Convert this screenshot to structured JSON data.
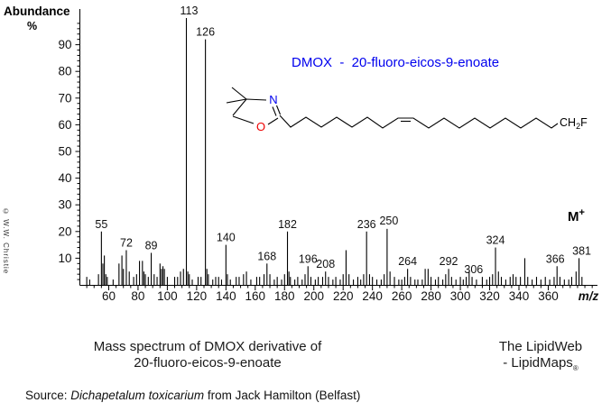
{
  "axes": {
    "y_title": "Abundance",
    "y_unit": "%",
    "x_label": "m/z"
  },
  "title": {
    "text": "DMOX  -  20-fluoro-eicos-9-enoate",
    "color": "#0000ee"
  },
  "watermark": "© W.W. Christie",
  "m_plus": {
    "base": "M",
    "sup": "+"
  },
  "structure": {
    "n_label": "N",
    "o_label": "O",
    "end_group_c": "CH",
    "end_group_sub": "2",
    "end_group_f": "F",
    "n_color": "#0000ee",
    "o_color": "#ee0000"
  },
  "caption": {
    "line1": "Mass spectrum of DMOX derivative of",
    "line2": "20-fluoro-eicos-9-enoate"
  },
  "credit": {
    "line1": "The LipidWeb",
    "line2": "- LipidMaps",
    "reg": "®"
  },
  "source": {
    "prefix": "Source: ",
    "italic": "Dichapetalum toxicarium",
    "suffix": " from Jack Hamilton (Belfast)"
  },
  "chart_data": {
    "type": "bar",
    "subtype": "mass-spectrum-stick-plot",
    "title": "DMOX - 20-fluoro-eicos-9-enoate",
    "xlabel": "m/z",
    "ylabel": "Abundance %",
    "xlim": [
      40,
      393
    ],
    "ylim": [
      0,
      100
    ],
    "x_ticks": [
      60,
      80,
      100,
      120,
      140,
      160,
      180,
      200,
      220,
      240,
      260,
      280,
      300,
      320,
      340,
      360
    ],
    "y_ticks": [
      10,
      20,
      30,
      40,
      50,
      60,
      70,
      80,
      90
    ],
    "grid": false,
    "molecular_ion_mz": 381,
    "labeled_peaks": [
      {
        "mz": 55,
        "intensity": 20
      },
      {
        "mz": 72,
        "intensity": 13
      },
      {
        "mz": 89,
        "intensity": 12
      },
      {
        "mz": 113,
        "intensity": 100
      },
      {
        "mz": 126,
        "intensity": 92
      },
      {
        "mz": 140,
        "intensity": 15
      },
      {
        "mz": 168,
        "intensity": 8
      },
      {
        "mz": 182,
        "intensity": 20
      },
      {
        "mz": 196,
        "intensity": 7
      },
      {
        "mz": 208,
        "intensity": 5
      },
      {
        "mz": 236,
        "intensity": 20
      },
      {
        "mz": 250,
        "intensity": 21
      },
      {
        "mz": 264,
        "intensity": 6
      },
      {
        "mz": 292,
        "intensity": 6
      },
      {
        "mz": 306,
        "intensity": 5
      },
      {
        "mz": 324,
        "intensity": 14
      },
      {
        "mz": 366,
        "intensity": 7
      },
      {
        "mz": 381,
        "intensity": 10
      }
    ],
    "peaks": [
      [
        45,
        3,
        0
      ],
      [
        47,
        2,
        0
      ],
      [
        53,
        4,
        0
      ],
      [
        55,
        20,
        1
      ],
      [
        56,
        8,
        0
      ],
      [
        57,
        11,
        0
      ],
      [
        58,
        4,
        0
      ],
      [
        59,
        3,
        0
      ],
      [
        63,
        2,
        0
      ],
      [
        67,
        8,
        0
      ],
      [
        69,
        11,
        0
      ],
      [
        70,
        6,
        0
      ],
      [
        72,
        13,
        1
      ],
      [
        74,
        5,
        0
      ],
      [
        77,
        3,
        0
      ],
      [
        79,
        4,
        0
      ],
      [
        81,
        9,
        0
      ],
      [
        83,
        9,
        0
      ],
      [
        84,
        5,
        0
      ],
      [
        85,
        4,
        0
      ],
      [
        87,
        3,
        0
      ],
      [
        89,
        12,
        1
      ],
      [
        91,
        4,
        0
      ],
      [
        93,
        3,
        0
      ],
      [
        95,
        8,
        0
      ],
      [
        96,
        6,
        0
      ],
      [
        97,
        7,
        0
      ],
      [
        98,
        6,
        0
      ],
      [
        100,
        3,
        0
      ],
      [
        105,
        3,
        0
      ],
      [
        107,
        3,
        0
      ],
      [
        109,
        5,
        0
      ],
      [
        111,
        6,
        0
      ],
      [
        113,
        100,
        1
      ],
      [
        114,
        5,
        0
      ],
      [
        115,
        4,
        0
      ],
      [
        117,
        2,
        0
      ],
      [
        121,
        3,
        0
      ],
      [
        123,
        3,
        0
      ],
      [
        126,
        92,
        1
      ],
      [
        127,
        6,
        0
      ],
      [
        128,
        4,
        0
      ],
      [
        131,
        2,
        0
      ],
      [
        133,
        3,
        0
      ],
      [
        135,
        3,
        0
      ],
      [
        137,
        2,
        0
      ],
      [
        140,
        15,
        1
      ],
      [
        141,
        4,
        0
      ],
      [
        143,
        2,
        0
      ],
      [
        147,
        3,
        0
      ],
      [
        149,
        3,
        0
      ],
      [
        152,
        4,
        0
      ],
      [
        154,
        5,
        0
      ],
      [
        157,
        2,
        0
      ],
      [
        161,
        3,
        0
      ],
      [
        163,
        3,
        0
      ],
      [
        166,
        4,
        0
      ],
      [
        168,
        8,
        1
      ],
      [
        170,
        4,
        0
      ],
      [
        173,
        2,
        0
      ],
      [
        175,
        3,
        0
      ],
      [
        178,
        2,
        0
      ],
      [
        180,
        4,
        0
      ],
      [
        182,
        20,
        1
      ],
      [
        183,
        5,
        0
      ],
      [
        184,
        3,
        0
      ],
      [
        187,
        2,
        0
      ],
      [
        189,
        3,
        0
      ],
      [
        192,
        2,
        0
      ],
      [
        194,
        4,
        0
      ],
      [
        196,
        7,
        1
      ],
      [
        198,
        3,
        0
      ],
      [
        201,
        2,
        0
      ],
      [
        203,
        3,
        0
      ],
      [
        206,
        3,
        0
      ],
      [
        208,
        5,
        1
      ],
      [
        210,
        3,
        0
      ],
      [
        213,
        2,
        0
      ],
      [
        215,
        3,
        0
      ],
      [
        218,
        2,
        0
      ],
      [
        220,
        4,
        0
      ],
      [
        222,
        13,
        0
      ],
      [
        224,
        4,
        0
      ],
      [
        227,
        2,
        0
      ],
      [
        230,
        3,
        0
      ],
      [
        232,
        2,
        0
      ],
      [
        234,
        4,
        0
      ],
      [
        236,
        20,
        1
      ],
      [
        238,
        4,
        0
      ],
      [
        240,
        3,
        0
      ],
      [
        243,
        2,
        0
      ],
      [
        246,
        2,
        0
      ],
      [
        248,
        4,
        0
      ],
      [
        250,
        21,
        1
      ],
      [
        252,
        5,
        0
      ],
      [
        255,
        3,
        0
      ],
      [
        258,
        2,
        0
      ],
      [
        260,
        2,
        0
      ],
      [
        262,
        3,
        0
      ],
      [
        264,
        6,
        1
      ],
      [
        266,
        3,
        0
      ],
      [
        269,
        2,
        0
      ],
      [
        271,
        2,
        0
      ],
      [
        274,
        2,
        0
      ],
      [
        276,
        6,
        0
      ],
      [
        278,
        6,
        0
      ],
      [
        280,
        3,
        0
      ],
      [
        283,
        2,
        0
      ],
      [
        285,
        3,
        0
      ],
      [
        288,
        2,
        0
      ],
      [
        290,
        4,
        0
      ],
      [
        292,
        6,
        1
      ],
      [
        294,
        3,
        0
      ],
      [
        297,
        2,
        0
      ],
      [
        300,
        3,
        0
      ],
      [
        302,
        2,
        0
      ],
      [
        304,
        3,
        0
      ],
      [
        306,
        5,
        1
      ],
      [
        308,
        3,
        0
      ],
      [
        311,
        2,
        0
      ],
      [
        315,
        3,
        0
      ],
      [
        318,
        2,
        0
      ],
      [
        320,
        3,
        0
      ],
      [
        322,
        4,
        0
      ],
      [
        324,
        14,
        1
      ],
      [
        326,
        5,
        0
      ],
      [
        328,
        3,
        0
      ],
      [
        331,
        2,
        0
      ],
      [
        334,
        3,
        0
      ],
      [
        336,
        4,
        0
      ],
      [
        338,
        3,
        0
      ],
      [
        341,
        3,
        0
      ],
      [
        344,
        10,
        0
      ],
      [
        346,
        3,
        0
      ],
      [
        349,
        2,
        0
      ],
      [
        352,
        3,
        0
      ],
      [
        355,
        2,
        0
      ],
      [
        358,
        3,
        0
      ],
      [
        361,
        2,
        0
      ],
      [
        364,
        3,
        0
      ],
      [
        366,
        7,
        1
      ],
      [
        368,
        3,
        0
      ],
      [
        371,
        2,
        0
      ],
      [
        374,
        2,
        0
      ],
      [
        376,
        3,
        0
      ],
      [
        379,
        5,
        0
      ],
      [
        381,
        10,
        1
      ],
      [
        383,
        3,
        0
      ]
    ],
    "label_offsets": {
      "113": [
        3,
        0
      ],
      "250": [
        2,
        -1
      ],
      "306": [
        5,
        6
      ],
      "366": [
        -2,
        0
      ],
      "381": [
        3,
        0
      ]
    }
  }
}
